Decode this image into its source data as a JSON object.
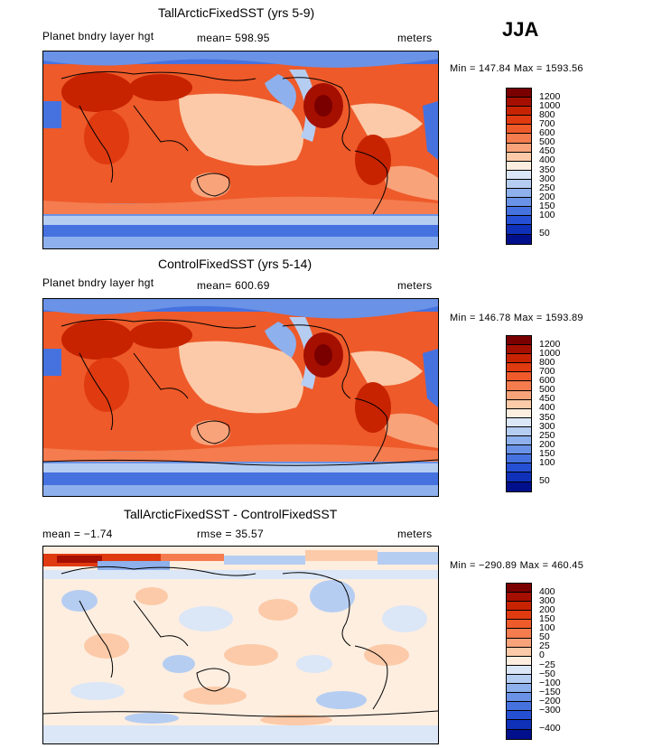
{
  "season": "JJA",
  "units": "meters",
  "variable": "Planet bndry layer hgt",
  "panels": [
    {
      "title": "TallArcticFixedSST (yrs 5-9)",
      "left_label": "Planet bndry layer hgt",
      "stat_label": "mean= 598.95",
      "units_label": "meters",
      "minmax": "Min = 147.84 Max = 1593.56",
      "colorbar_levels": [
        "1200",
        "1000",
        "800",
        "700",
        "600",
        "500",
        "450",
        "400",
        "350",
        "300",
        "250",
        "200",
        "150",
        "100",
        "50"
      ],
      "colors": [
        "#7a0000",
        "#a50f00",
        "#c72300",
        "#e03a10",
        "#ee5a2a",
        "#f47c4e",
        "#f9a37a",
        "#fccaa8",
        "#fdeee0",
        "#dbe6f7",
        "#b6cdf2",
        "#8eb0ec",
        "#6a92e6",
        "#4672e0",
        "#2550d4",
        "#0f30b8",
        "#00108c"
      ]
    },
    {
      "title": "ControlFixedSST (yrs 5-14)",
      "left_label": "Planet bndry layer hgt",
      "stat_label": "mean= 600.69",
      "units_label": "meters",
      "minmax": "Min = 146.78 Max = 1593.89",
      "colorbar_levels": [
        "1200",
        "1000",
        "800",
        "700",
        "600",
        "500",
        "450",
        "400",
        "350",
        "300",
        "250",
        "200",
        "150",
        "100",
        "50"
      ],
      "colors": [
        "#7a0000",
        "#a50f00",
        "#c72300",
        "#e03a10",
        "#ee5a2a",
        "#f47c4e",
        "#f9a37a",
        "#fccaa8",
        "#fdeee0",
        "#dbe6f7",
        "#b6cdf2",
        "#8eb0ec",
        "#6a92e6",
        "#4672e0",
        "#2550d4",
        "#0f30b8",
        "#00108c"
      ]
    },
    {
      "title": "TallArcticFixedSST - ControlFixedSST",
      "left_label": "mean =   −1.74",
      "stat_label": "rmse =   35.57",
      "units_label": "meters",
      "minmax": "Min = −290.89 Max = 460.45",
      "colorbar_levels": [
        "400",
        "300",
        "200",
        "150",
        "100",
        "50",
        "25",
        "0",
        "−25",
        "−50",
        "−100",
        "−150",
        "−200",
        "−300",
        "−400"
      ],
      "colors": [
        "#7a0000",
        "#a50f00",
        "#c72300",
        "#e03a10",
        "#ee5a2a",
        "#f47c4e",
        "#f9a37a",
        "#fccaa8",
        "#fdeee0",
        "#dbe6f7",
        "#b6cdf2",
        "#8eb0ec",
        "#6a92e6",
        "#4672e0",
        "#2550d4",
        "#0f30b8",
        "#00108c"
      ]
    }
  ]
}
